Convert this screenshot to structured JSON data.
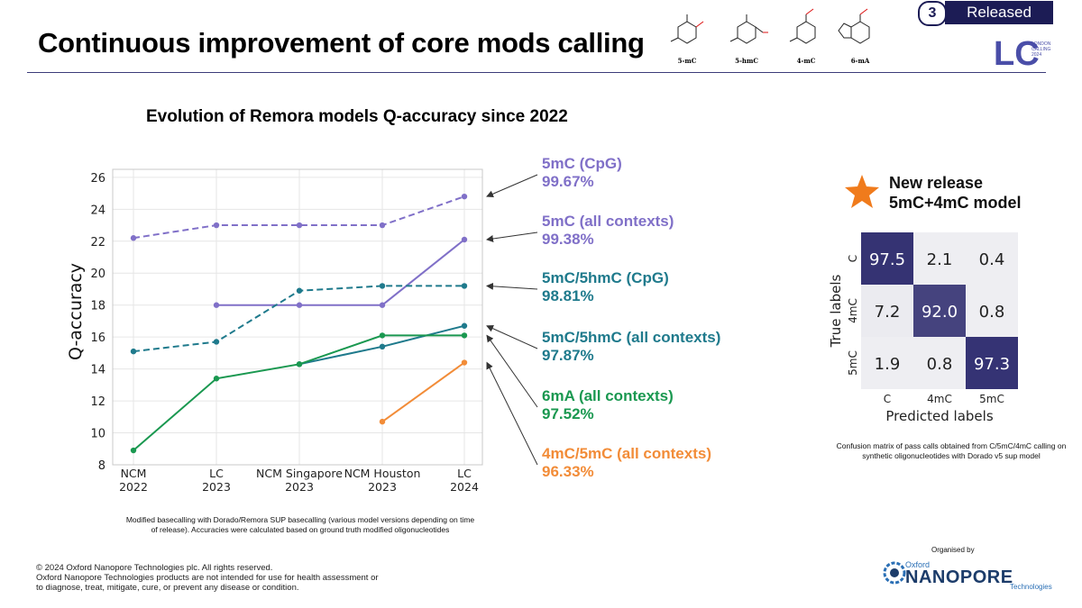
{
  "header": {
    "title": "Continuous improvement of core mods calling",
    "badge_number": "3",
    "badge_label": "Released",
    "molecules": [
      "5-mC",
      "5-hmC",
      "4-mC",
      "6-mA"
    ],
    "lc_logo": {
      "letters": "LC",
      "small_text": [
        "LONDON",
        "CALLING",
        "2024"
      ]
    }
  },
  "chart_data": {
    "type": "line",
    "title": "Evolution of Remora models Q-accuracy since 2022",
    "xlabel": "",
    "ylabel": "Q-accuracy",
    "categories": [
      [
        "NCM",
        "2022"
      ],
      [
        "LC",
        "2023"
      ],
      [
        "NCM Singapore",
        "2023"
      ],
      [
        "NCM Houston",
        "2023"
      ],
      [
        "LC",
        "2024"
      ]
    ],
    "yticks": [
      "8",
      "10",
      "12",
      "14",
      "16",
      "18",
      "20",
      "22",
      "24",
      "26"
    ],
    "ylim": [
      8,
      26.5
    ],
    "grid": true,
    "series": [
      {
        "key": "5mC_CpG",
        "callout_name": "5mC (CpG)",
        "callout_value": "99.67%",
        "color": "#8070c8",
        "dashed": true,
        "values": [
          22.2,
          23.0,
          23.0,
          23.0,
          24.8
        ]
      },
      {
        "key": "5mC_all",
        "callout_name": "5mC (all contexts)",
        "callout_value": "99.38%",
        "color": "#8070c8",
        "dashed": false,
        "values": [
          null,
          18.0,
          18.0,
          18.0,
          22.1
        ]
      },
      {
        "key": "5hmC_CpG",
        "callout_name": "5mC/5hmC (CpG)",
        "callout_value": "98.81%",
        "color": "#1f7a8c",
        "dashed": true,
        "values": [
          15.1,
          15.7,
          18.9,
          19.2,
          19.2
        ]
      },
      {
        "key": "5hmC_all",
        "callout_name": "5mC/5hmC (all contexts)",
        "callout_value": "97.87%",
        "color": "#1f7a8c",
        "dashed": false,
        "values": [
          null,
          null,
          14.3,
          15.4,
          16.7
        ]
      },
      {
        "key": "6mA_all",
        "callout_name": "6mA (all contexts)",
        "callout_value": "97.52%",
        "color": "#1a9850",
        "dashed": false,
        "values": [
          8.9,
          13.4,
          14.3,
          16.1,
          16.1
        ]
      },
      {
        "key": "4mC_all",
        "callout_name": "4mC/5mC (all contexts)",
        "callout_value": "96.33%",
        "color": "#f28c38",
        "dashed": false,
        "values": [
          null,
          null,
          null,
          10.7,
          14.4
        ]
      }
    ],
    "caption": "Modified basecalling with Dorado/Remora SUP basecalling (various model versions depending on time of release). Accuracies were calculated based on ground truth modified oligonucleotides"
  },
  "confusion_matrix": {
    "title_line1": "New release",
    "title_line2": "5mC+4mC model",
    "row_labels": [
      "C",
      "4mC",
      "5mC"
    ],
    "col_labels": [
      "C",
      "4mC",
      "5mC"
    ],
    "ylabel": "True labels",
    "xlabel": "Predicted labels",
    "values": [
      [
        "97.5",
        "2.1",
        "0.4"
      ],
      [
        "7.2",
        "92.0",
        "0.8"
      ],
      [
        "1.9",
        "0.8",
        "97.3"
      ]
    ],
    "caption": "Confusion matrix of pass calls obtained from C/5mC/4mC calling on synthetic oligonucleotides with Dorado v5 sup model",
    "high_color": "#2d2b6e",
    "low_color": "#eeeef2"
  },
  "footer": {
    "copyright_lines": [
      "© 2024 Oxford Nanopore Technologies plc. All rights reserved.",
      "Oxford Nanopore Technologies products are not intended for use for health assessment or",
      "to diagnose, treat, mitigate, cure, or prevent any disease or condition."
    ],
    "organised_by": "Organised by",
    "brand_oxford": "Oxford",
    "brand_name": "NANOPORE",
    "brand_tech": "Technologies"
  }
}
